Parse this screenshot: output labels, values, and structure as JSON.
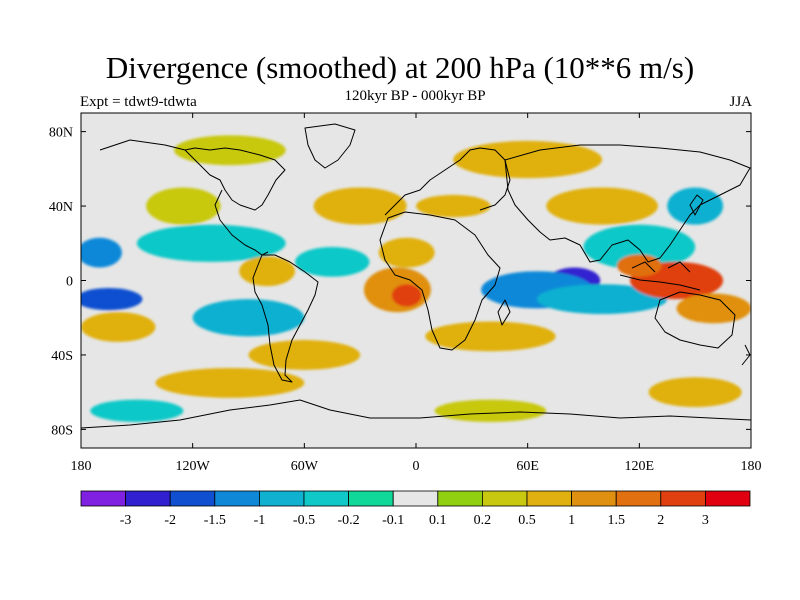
{
  "title": "Divergence (smoothed) at 200 hPa (10**6 m/s)",
  "subtitle": "120kyr BP - 000kyr BP",
  "experiment": "Expt = tdwt9-tdwta",
  "season": "JJA",
  "axes": {
    "y_ticks": [
      "80N",
      "40N",
      "0",
      "40S",
      "80S"
    ],
    "x_ticks": [
      "180",
      "120W",
      "60W",
      "0",
      "60E",
      "120E",
      "180"
    ]
  },
  "colorbar": {
    "colors": [
      "#8020e0",
      "#3020d0",
      "#1050d0",
      "#1088d8",
      "#10b0d0",
      "#10c8c8",
      "#10d898",
      "#e6e6e6",
      "#90d010",
      "#c8c810",
      "#e0b010",
      "#e09010",
      "#e07010",
      "#e04010",
      "#e00010"
    ],
    "labels": [
      "-3",
      "-2",
      "-1.5",
      "-1",
      "-0.5",
      "-0.2",
      "-0.1",
      "0.1",
      "0.2",
      "0.5",
      "1",
      "1.5",
      "2",
      "3"
    ]
  },
  "map": {
    "projection": "cylindrical equidistant",
    "lon_range": [
      -180,
      180
    ],
    "lat_range": [
      -90,
      90
    ],
    "background_color": "#e6e6e6",
    "field_blobs": [
      {
        "lon": 85,
        "lat": 0,
        "rx": 14,
        "ry": 7,
        "level": 1
      },
      {
        "lon": 65,
        "lat": -5,
        "rx": 30,
        "ry": 10,
        "level": 3
      },
      {
        "lon": 100,
        "lat": -10,
        "rx": 35,
        "ry": 8,
        "level": 4
      },
      {
        "lon": 120,
        "lat": 18,
        "rx": 30,
        "ry": 12,
        "level": 5
      },
      {
        "lon": 140,
        "lat": 0,
        "rx": 25,
        "ry": 10,
        "level": 13
      },
      {
        "lon": 120,
        "lat": 8,
        "rx": 12,
        "ry": 6,
        "level": 12
      },
      {
        "lon": 160,
        "lat": -15,
        "rx": 20,
        "ry": 8,
        "level": 11
      },
      {
        "lon": -10,
        "lat": -5,
        "rx": 18,
        "ry": 12,
        "level": 11
      },
      {
        "lon": -5,
        "lat": -8,
        "rx": 8,
        "ry": 6,
        "level": 13
      },
      {
        "lon": -5,
        "lat": 15,
        "rx": 15,
        "ry": 8,
        "level": 10
      },
      {
        "lon": 40,
        "lat": -30,
        "rx": 35,
        "ry": 8,
        "level": 10
      },
      {
        "lon": -165,
        "lat": -10,
        "rx": 18,
        "ry": 6,
        "level": 2
      },
      {
        "lon": -170,
        "lat": 15,
        "rx": 12,
        "ry": 8,
        "level": 3
      },
      {
        "lon": -160,
        "lat": -25,
        "rx": 20,
        "ry": 8,
        "level": 10
      },
      {
        "lon": -110,
        "lat": 20,
        "rx": 40,
        "ry": 10,
        "level": 5
      },
      {
        "lon": -125,
        "lat": 40,
        "rx": 20,
        "ry": 10,
        "level": 9
      },
      {
        "lon": -80,
        "lat": 5,
        "rx": 15,
        "ry": 8,
        "level": 10
      },
      {
        "lon": -90,
        "lat": -20,
        "rx": 30,
        "ry": 10,
        "level": 4
      },
      {
        "lon": -60,
        "lat": -40,
        "rx": 30,
        "ry": 8,
        "level": 10
      },
      {
        "lon": -100,
        "lat": -55,
        "rx": 40,
        "ry": 8,
        "level": 10
      },
      {
        "lon": -30,
        "lat": 40,
        "rx": 25,
        "ry": 10,
        "level": 10
      },
      {
        "lon": -45,
        "lat": 10,
        "rx": 20,
        "ry": 8,
        "level": 5
      },
      {
        "lon": 20,
        "lat": 40,
        "rx": 20,
        "ry": 6,
        "level": 10
      },
      {
        "lon": 100,
        "lat": 40,
        "rx": 30,
        "ry": 10,
        "level": 10
      },
      {
        "lon": 150,
        "lat": 40,
        "rx": 15,
        "ry": 10,
        "level": 4
      },
      {
        "lon": 60,
        "lat": 65,
        "rx": 40,
        "ry": 10,
        "level": 10
      },
      {
        "lon": -100,
        "lat": 70,
        "rx": 30,
        "ry": 8,
        "level": 9
      },
      {
        "lon": -150,
        "lat": -70,
        "rx": 25,
        "ry": 6,
        "level": 5
      },
      {
        "lon": 150,
        "lat": -60,
        "rx": 25,
        "ry": 8,
        "level": 10
      },
      {
        "lon": 40,
        "lat": -70,
        "rx": 30,
        "ry": 6,
        "level": 9
      }
    ]
  }
}
